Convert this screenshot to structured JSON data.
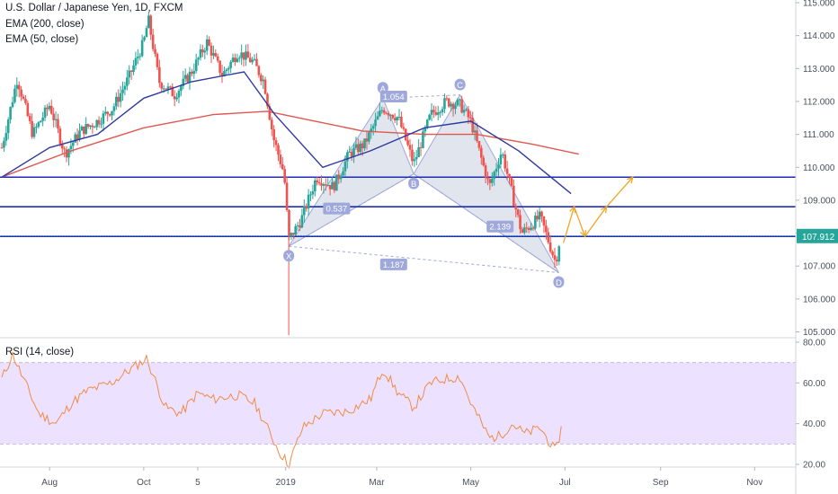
{
  "header": {
    "title": "U.S. Dollar / Japanese Yen, 1D, FXCM",
    "indicator_1": "EMA (200, close)",
    "indicator_2": "EMA (50, close)"
  },
  "rsi_panel": {
    "label": "RSI (14, close)"
  },
  "colors": {
    "up_candle": "#26a69a",
    "down_candle": "#ef5350",
    "ema200": "#e0574f",
    "ema50": "#2f3a9e",
    "levels": "#1f2db3",
    "pattern_fill": "#c9cfe0",
    "pattern_label": "#9fa8da",
    "projection": "#f2a623",
    "rsi_line": "#f08b48",
    "rsi_band": "#ece2ff",
    "price_tag": "#26a69a"
  },
  "chart_data": [
    {
      "type": "candlestick",
      "title": "U.S. Dollar / Japanese Yen, 1D, FXCM",
      "ylim": [
        104.9,
        115.2
      ],
      "y_ticks": [
        "115.000",
        "114.000",
        "113.000",
        "112.000",
        "111.000",
        "110.000",
        "109.000",
        "108.000",
        "107.000",
        "106.000",
        "105.000"
      ],
      "x_tick_labels": [
        "Aug",
        "Oct",
        "5",
        "2019",
        "Mar",
        "May",
        "Jul",
        "Sep",
        "Nov"
      ],
      "close_path": [
        [
          "2018-07-01",
          110.6
        ],
        [
          "2018-07-11",
          112.7
        ],
        [
          "2018-07-21",
          111.0
        ],
        [
          "2018-08-01",
          111.9
        ],
        [
          "2018-08-11",
          110.4
        ],
        [
          "2018-08-21",
          111.1
        ],
        [
          "2018-09-01",
          111.4
        ],
        [
          "2018-09-11",
          111.8
        ],
        [
          "2018-09-21",
          112.7
        ],
        [
          "2018-10-01",
          113.8
        ],
        [
          "2018-10-04",
          114.5
        ],
        [
          "2018-10-11",
          112.6
        ],
        [
          "2018-10-21",
          112.2
        ],
        [
          "2018-11-01",
          112.9
        ],
        [
          "2018-11-11",
          113.8
        ],
        [
          "2018-11-21",
          112.8
        ],
        [
          "2018-12-01",
          113.5
        ],
        [
          "2018-12-11",
          113.2
        ],
        [
          "2018-12-18",
          112.6
        ],
        [
          "2018-12-24",
          110.9
        ],
        [
          "2018-12-31",
          109.8
        ],
        [
          "2019-01-03",
          107.8
        ],
        [
          "2019-01-11",
          108.4
        ],
        [
          "2019-01-21",
          109.7
        ],
        [
          "2019-02-01",
          109.4
        ],
        [
          "2019-02-11",
          110.4
        ],
        [
          "2019-02-21",
          110.7
        ],
        [
          "2019-03-05",
          111.8
        ],
        [
          "2019-03-15",
          111.5
        ],
        [
          "2019-03-25",
          110.1
        ],
        [
          "2019-04-05",
          111.6
        ],
        [
          "2019-04-15",
          112.0
        ],
        [
          "2019-04-24",
          111.9
        ],
        [
          "2019-05-01",
          111.4
        ],
        [
          "2019-05-13",
          109.4
        ],
        [
          "2019-05-21",
          110.5
        ],
        [
          "2019-06-03",
          108.0
        ],
        [
          "2019-06-15",
          108.5
        ],
        [
          "2019-06-25",
          107.1
        ],
        [
          "2019-06-28",
          107.9
        ]
      ],
      "ema200_path": [
        [
          "2018-07-01",
          109.7
        ],
        [
          "2018-08-15",
          110.5
        ],
        [
          "2018-10-01",
          111.2
        ],
        [
          "2018-11-15",
          111.6
        ],
        [
          "2018-12-20",
          111.7
        ],
        [
          "2019-01-20",
          111.4
        ],
        [
          "2019-02-20",
          111.1
        ],
        [
          "2019-04-01",
          111.0
        ],
        [
          "2019-05-05",
          111.0
        ],
        [
          "2019-06-10",
          110.7
        ],
        [
          "2019-07-10",
          110.4
        ]
      ],
      "ema50_path": [
        [
          "2018-07-01",
          109.7
        ],
        [
          "2018-08-01",
          110.6
        ],
        [
          "2018-09-01",
          111.0
        ],
        [
          "2018-10-01",
          112.1
        ],
        [
          "2018-11-01",
          112.6
        ],
        [
          "2018-12-05",
          112.9
        ],
        [
          "2018-12-25",
          111.6
        ],
        [
          "2019-01-25",
          110.0
        ],
        [
          "2019-02-25",
          110.5
        ],
        [
          "2019-04-01",
          111.2
        ],
        [
          "2019-05-01",
          111.4
        ],
        [
          "2019-06-01",
          110.5
        ],
        [
          "2019-07-05",
          109.2
        ]
      ],
      "horizontal_levels": [
        109.7,
        108.8,
        107.9
      ],
      "pattern_points": [
        {
          "label": "X",
          "date": "2019-01-03",
          "price": 107.6
        },
        {
          "label": "A",
          "date": "2019-03-05",
          "price": 112.1
        },
        {
          "label": "B",
          "date": "2019-03-25",
          "price": 109.8
        },
        {
          "label": "C",
          "date": "2019-04-24",
          "price": 112.2
        },
        {
          "label": "D",
          "date": "2019-06-27",
          "price": 106.8
        }
      ],
      "ratio_labels": [
        {
          "text": "1.054",
          "date": "2019-03-12",
          "price": 112.15
        },
        {
          "text": "0.537",
          "date": "2019-02-03",
          "price": 108.75
        },
        {
          "text": "2.139",
          "date": "2019-05-20",
          "price": 108.2
        },
        {
          "text": "1.187",
          "date": "2019-03-12",
          "price": 107.05
        }
      ],
      "projection_path": [
        [
          "2019-06-30",
          107.7
        ],
        [
          "2019-07-07",
          108.8
        ],
        [
          "2019-07-14",
          107.9
        ],
        [
          "2019-07-28",
          108.8
        ],
        [
          "2019-08-14",
          109.7
        ]
      ],
      "last_price": "107.912"
    },
    {
      "type": "line",
      "title": "RSI (14, close)",
      "ylim": [
        15,
        82
      ],
      "y_ticks": [
        "80.00",
        "60.00",
        "40.00",
        "20.00"
      ],
      "band": [
        30,
        70
      ],
      "rsi_path": [
        [
          "2018-07-01",
          62
        ],
        [
          "2018-07-08",
          74
        ],
        [
          "2018-07-15",
          62
        ],
        [
          "2018-07-25",
          45
        ],
        [
          "2018-08-05",
          40
        ],
        [
          "2018-08-15",
          50
        ],
        [
          "2018-08-25",
          56
        ],
        [
          "2018-09-10",
          60
        ],
        [
          "2018-09-25",
          68
        ],
        [
          "2018-10-03",
          72
        ],
        [
          "2018-10-15",
          48
        ],
        [
          "2018-10-25",
          45
        ],
        [
          "2018-11-05",
          55
        ],
        [
          "2018-11-15",
          52
        ],
        [
          "2018-12-01",
          54
        ],
        [
          "2018-12-12",
          50
        ],
        [
          "2018-12-20",
          38
        ],
        [
          "2018-12-28",
          26
        ],
        [
          "2019-01-03",
          20
        ],
        [
          "2019-01-12",
          38
        ],
        [
          "2019-01-25",
          45
        ],
        [
          "2019-02-10",
          46
        ],
        [
          "2019-02-25",
          52
        ],
        [
          "2019-03-05",
          67
        ],
        [
          "2019-03-15",
          55
        ],
        [
          "2019-03-25",
          48
        ],
        [
          "2019-04-05",
          60
        ],
        [
          "2019-04-15",
          62
        ],
        [
          "2019-04-24",
          63
        ],
        [
          "2019-05-01",
          50
        ],
        [
          "2019-05-13",
          33
        ],
        [
          "2019-05-20",
          34
        ],
        [
          "2019-05-28",
          40
        ],
        [
          "2019-06-05",
          35
        ],
        [
          "2019-06-15",
          38
        ],
        [
          "2019-06-25",
          26
        ],
        [
          "2019-06-30",
          42
        ]
      ]
    }
  ]
}
